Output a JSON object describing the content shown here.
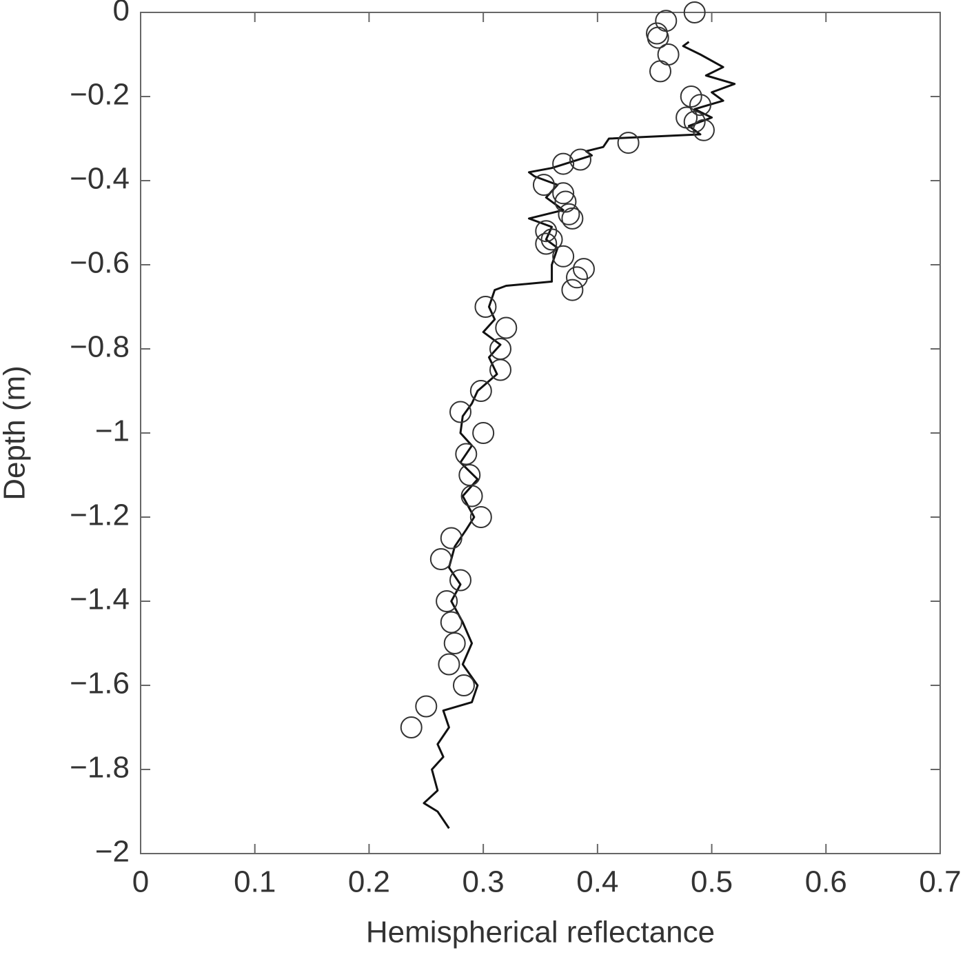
{
  "chart_data": {
    "type": "line",
    "xlabel": "Hemispherical reflectance",
    "ylabel": "Depth (m)",
    "xlim": [
      0,
      0.7
    ],
    "ylim": [
      -2,
      0
    ],
    "xticks": [
      0,
      0.1,
      0.2,
      0.3,
      0.4,
      0.5,
      0.6,
      0.7
    ],
    "yticks": [
      0,
      {
        "value": -0.2,
        "label": "−0.2"
      },
      {
        "value": -0.4,
        "label": "−0.4"
      },
      {
        "value": -0.6,
        "label": "−0.6"
      },
      {
        "value": -0.8,
        "label": "−0.8"
      },
      {
        "value": -1,
        "label": "−1"
      },
      {
        "value": -1.2,
        "label": "−1.2"
      },
      {
        "value": -1.4,
        "label": "−1.4"
      },
      {
        "value": -1.6,
        "label": "−1.6"
      },
      {
        "value": -1.8,
        "label": "−1.8"
      },
      {
        "value": -2,
        "label": "−2"
      }
    ],
    "series": [
      {
        "type": "line",
        "color": "#111111",
        "x": [
          0.48,
          0.475,
          0.49,
          0.51,
          0.495,
          0.52,
          0.5,
          0.51,
          0.485,
          0.5,
          0.48,
          0.49,
          0.41,
          0.405,
          0.39,
          0.395,
          0.36,
          0.34,
          0.345,
          0.365,
          0.355,
          0.37,
          0.34,
          0.36,
          0.355,
          0.365,
          0.36,
          0.36,
          0.32,
          0.31,
          0.305,
          0.31,
          0.3,
          0.315,
          0.305,
          0.312,
          0.295,
          0.29,
          0.282,
          0.28,
          0.29,
          0.28,
          0.295,
          0.282,
          0.292,
          0.285,
          0.275,
          0.27,
          0.28,
          0.272,
          0.282,
          0.29,
          0.282,
          0.295,
          0.29,
          0.265,
          0.27,
          0.26,
          0.265,
          0.255,
          0.26,
          0.248,
          0.26,
          0.27
        ],
        "y": [
          -0.07,
          -0.08,
          -0.1,
          -0.13,
          -0.15,
          -0.17,
          -0.19,
          -0.21,
          -0.23,
          -0.25,
          -0.27,
          -0.29,
          -0.3,
          -0.32,
          -0.33,
          -0.34,
          -0.37,
          -0.38,
          -0.39,
          -0.41,
          -0.44,
          -0.47,
          -0.49,
          -0.51,
          -0.54,
          -0.56,
          -0.6,
          -0.64,
          -0.65,
          -0.66,
          -0.7,
          -0.73,
          -0.76,
          -0.79,
          -0.82,
          -0.86,
          -0.9,
          -0.93,
          -0.96,
          -1.0,
          -1.03,
          -1.07,
          -1.11,
          -1.15,
          -1.2,
          -1.23,
          -1.27,
          -1.32,
          -1.36,
          -1.4,
          -1.45,
          -1.5,
          -1.55,
          -1.6,
          -1.64,
          -1.66,
          -1.7,
          -1.74,
          -1.77,
          -1.8,
          -1.85,
          -1.88,
          -1.9,
          -1.94
        ]
      },
      {
        "type": "scatter",
        "color": "#333333",
        "x": [
          0.485,
          0.46,
          0.452,
          0.453,
          0.462,
          0.455,
          0.482,
          0.49,
          0.478,
          0.485,
          0.493,
          0.427,
          0.385,
          0.37,
          0.353,
          0.37,
          0.372,
          0.375,
          0.378,
          0.355,
          0.36,
          0.355,
          0.37,
          0.388,
          0.382,
          0.378,
          0.302,
          0.32,
          0.315,
          0.315,
          0.298,
          0.28,
          0.3,
          0.285,
          0.288,
          0.29,
          0.298,
          0.272,
          0.263,
          0.28,
          0.268,
          0.272,
          0.275,
          0.27,
          0.283,
          0.25,
          0.237
        ],
        "y": [
          0,
          -0.02,
          -0.05,
          -0.06,
          -0.1,
          -0.14,
          -0.2,
          -0.22,
          -0.25,
          -0.26,
          -0.28,
          -0.31,
          -0.35,
          -0.36,
          -0.41,
          -0.43,
          -0.45,
          -0.48,
          -0.49,
          -0.52,
          -0.54,
          -0.55,
          -0.58,
          -0.61,
          -0.63,
          -0.66,
          -0.7,
          -0.75,
          -0.8,
          -0.85,
          -0.9,
          -0.95,
          -1.0,
          -1.05,
          -1.1,
          -1.15,
          -1.2,
          -1.25,
          -1.3,
          -1.35,
          -1.4,
          -1.45,
          -1.5,
          -1.55,
          -1.6,
          -1.65,
          -1.7
        ]
      }
    ]
  }
}
